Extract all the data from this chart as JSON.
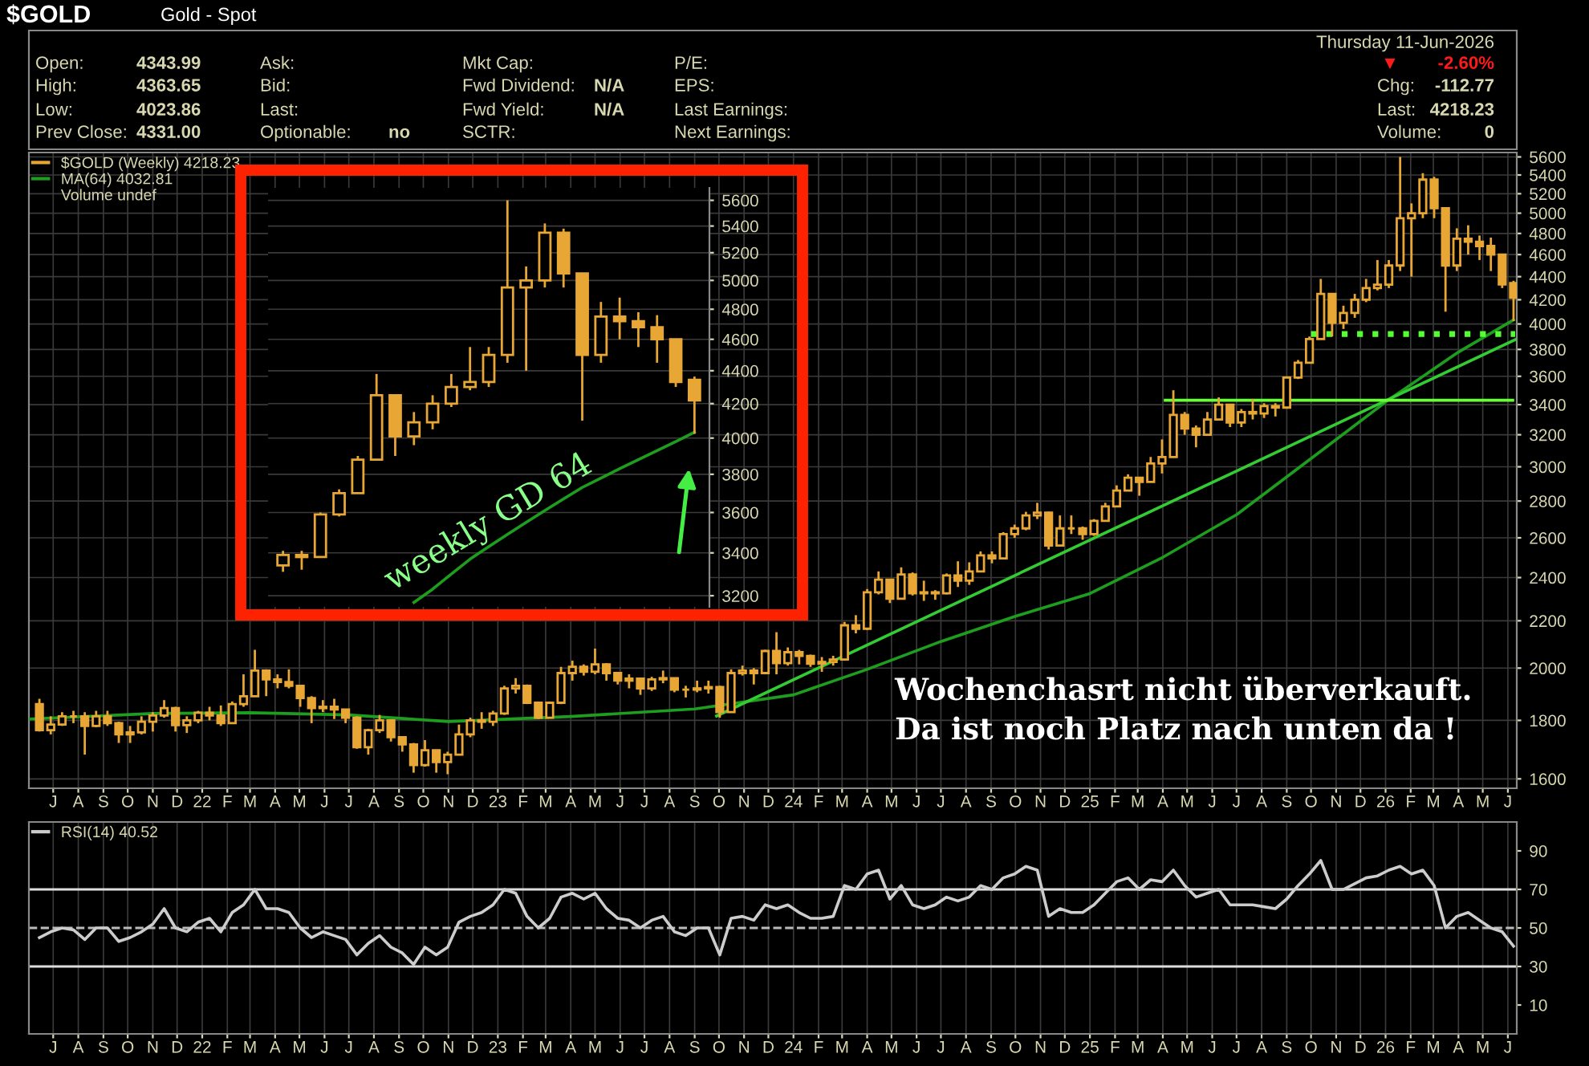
{
  "chart_data": [
    {
      "type": "candlestick",
      "title": "$GOLD",
      "subtitle": "Gold - Spot",
      "x": [
        "2021-06-14",
        "2021-06-28",
        "2021-07-12",
        "2021-07-26",
        "2021-08-09",
        "2021-08-23",
        "2021-09-06",
        "2021-09-20",
        "2021-10-04",
        "2021-10-18",
        "2021-11-01",
        "2021-11-15",
        "2021-11-29",
        "2021-12-13",
        "2021-12-27",
        "2022-01-10",
        "2022-01-24",
        "2022-02-07",
        "2022-02-21",
        "2022-03-07",
        "2022-03-21",
        "2022-04-04",
        "2022-04-18",
        "2022-05-02",
        "2022-05-16",
        "2022-05-30",
        "2022-06-13",
        "2022-06-27",
        "2022-07-11",
        "2022-07-25",
        "2022-08-08",
        "2022-08-22",
        "2022-09-05",
        "2022-09-19",
        "2022-10-03",
        "2022-10-17",
        "2022-10-31",
        "2022-11-14",
        "2022-11-28",
        "2022-12-12",
        "2022-12-26",
        "2023-01-09",
        "2023-01-23",
        "2023-02-06",
        "2023-02-20",
        "2023-03-06",
        "2023-03-20",
        "2023-04-03",
        "2023-04-17",
        "2023-05-01",
        "2023-05-15",
        "2023-05-29",
        "2023-06-12",
        "2023-06-26",
        "2023-07-10",
        "2023-07-24",
        "2023-08-07",
        "2023-08-21",
        "2023-09-04",
        "2023-09-18",
        "2023-10-02",
        "2023-10-16",
        "2023-10-30",
        "2023-11-13",
        "2023-11-27",
        "2023-12-11",
        "2023-12-25",
        "2024-01-08",
        "2024-01-22",
        "2024-02-05",
        "2024-02-19",
        "2024-03-04",
        "2024-03-18",
        "2024-04-01",
        "2024-04-15",
        "2024-04-29",
        "2024-05-13",
        "2024-05-27",
        "2024-06-10",
        "2024-06-24",
        "2024-07-08",
        "2024-07-22",
        "2024-08-05",
        "2024-08-19",
        "2024-09-02",
        "2024-09-16",
        "2024-09-30",
        "2024-10-14",
        "2024-10-28",
        "2024-11-11",
        "2024-11-25",
        "2024-12-09",
        "2024-12-23",
        "2025-01-06",
        "2025-01-20",
        "2025-02-03",
        "2025-02-17",
        "2025-03-03",
        "2025-03-17",
        "2025-03-31",
        "2025-04-14",
        "2025-04-28",
        "2025-05-12",
        "2025-05-26",
        "2025-06-09",
        "2025-06-23",
        "2025-07-07",
        "2025-07-21",
        "2025-08-04",
        "2025-08-18",
        "2025-09-01",
        "2025-09-15",
        "2025-09-29",
        "2025-10-13",
        "2025-10-27",
        "2025-11-10",
        "2025-11-24",
        "2025-12-08",
        "2025-12-22",
        "2026-01-05",
        "2026-01-19",
        "2026-02-02",
        "2026-02-16",
        "2026-03-02",
        "2026-03-16",
        "2026-03-30",
        "2026-04-13",
        "2026-04-27",
        "2026-05-11",
        "2026-05-25",
        "2026-06-08"
      ],
      "series": [
        {
          "type": "candlestick",
          "name": "$GOLD (Weekly) 4218.23",
          "color": "#e8a735",
          "ohlc": [
            [
              1860,
              1880,
              1760,
              1765
            ],
            [
              1765,
              1815,
              1750,
              1785
            ],
            [
              1785,
              1830,
              1780,
              1815
            ],
            [
              1815,
              1835,
              1790,
              1815
            ],
            [
              1815,
              1830,
              1680,
              1780
            ],
            [
              1780,
              1835,
              1775,
              1815
            ],
            [
              1815,
              1835,
              1780,
              1790
            ],
            [
              1790,
              1795,
              1720,
              1750
            ],
            [
              1750,
              1780,
              1720,
              1757
            ],
            [
              1757,
              1815,
              1750,
              1795
            ],
            [
              1795,
              1830,
              1760,
              1818
            ],
            [
              1818,
              1875,
              1810,
              1845
            ],
            [
              1845,
              1850,
              1760,
              1783
            ],
            [
              1783,
              1815,
              1755,
              1800
            ],
            [
              1800,
              1835,
              1790,
              1828
            ],
            [
              1828,
              1850,
              1800,
              1818
            ],
            [
              1818,
              1855,
              1780,
              1790
            ],
            [
              1790,
              1870,
              1790,
              1860
            ],
            [
              1860,
              1975,
              1850,
              1890
            ],
            [
              1890,
              2075,
              1890,
              1990
            ],
            [
              1990,
              1995,
              1890,
              1955
            ],
            [
              1955,
              1975,
              1920,
              1945
            ],
            [
              1945,
              1995,
              1920,
              1930
            ],
            [
              1930,
              1930,
              1850,
              1883
            ],
            [
              1883,
              1890,
              1790,
              1845
            ],
            [
              1845,
              1875,
              1830,
              1850
            ],
            [
              1850,
              1880,
              1805,
              1840
            ],
            [
              1840,
              1840,
              1790,
              1810
            ],
            [
              1810,
              1815,
              1700,
              1705
            ],
            [
              1705,
              1770,
              1680,
              1765
            ],
            [
              1765,
              1820,
              1755,
              1800
            ],
            [
              1800,
              1800,
              1725,
              1740
            ],
            [
              1740,
              1740,
              1690,
              1715
            ],
            [
              1715,
              1720,
              1620,
              1645
            ],
            [
              1645,
              1730,
              1640,
              1695
            ],
            [
              1695,
              1695,
              1620,
              1655
            ],
            [
              1655,
              1690,
              1615,
              1680
            ],
            [
              1680,
              1785,
              1680,
              1750
            ],
            [
              1750,
              1810,
              1740,
              1800
            ],
            [
              1800,
              1830,
              1770,
              1795
            ],
            [
              1795,
              1835,
              1780,
              1825
            ],
            [
              1825,
              1930,
              1820,
              1920
            ],
            [
              1920,
              1960,
              1900,
              1930
            ],
            [
              1930,
              1935,
              1860,
              1865
            ],
            [
              1865,
              1870,
              1805,
              1810
            ],
            [
              1810,
              1870,
              1810,
              1865
            ],
            [
              1865,
              2005,
              1860,
              1980
            ],
            [
              1980,
              2030,
              1950,
              2005
            ],
            [
              2005,
              2015,
              1970,
              1985
            ],
            [
              1985,
              2080,
              1975,
              2015
            ],
            [
              2015,
              2020,
              1950,
              1980
            ],
            [
              1980,
              1985,
              1935,
              1950
            ],
            [
              1950,
              1975,
              1920,
              1958
            ],
            [
              1958,
              1960,
              1895,
              1920
            ],
            [
              1920,
              1965,
              1910,
              1955
            ],
            [
              1955,
              1990,
              1940,
              1960
            ],
            [
              1960,
              1960,
              1905,
              1915
            ],
            [
              1915,
              1930,
              1885,
              1915
            ],
            [
              1915,
              1950,
              1905,
              1920
            ],
            [
              1920,
              1950,
              1900,
              1925
            ],
            [
              1925,
              1930,
              1810,
              1830
            ],
            [
              1830,
              1995,
              1830,
              1980
            ],
            [
              1980,
              2010,
              1970,
              1990
            ],
            [
              1990,
              2000,
              1935,
              1980
            ],
            [
              1980,
              2075,
              1975,
              2070
            ],
            [
              2070,
              2150,
              1975,
              2020
            ],
            [
              2020,
              2085,
              2010,
              2065
            ],
            [
              2065,
              2075,
              2015,
              2050
            ],
            [
              2050,
              2055,
              2005,
              2018
            ],
            [
              2018,
              2045,
              1985,
              2025
            ],
            [
              2025,
              2050,
              2010,
              2035
            ],
            [
              2035,
              2195,
              2035,
              2180
            ],
            [
              2180,
              2225,
              2145,
              2165
            ],
            [
              2165,
              2345,
              2160,
              2330
            ],
            [
              2330,
              2430,
              2320,
              2390
            ],
            [
              2390,
              2390,
              2280,
              2300
            ],
            [
              2300,
              2450,
              2300,
              2415
            ],
            [
              2415,
              2425,
              2315,
              2325
            ],
            [
              2325,
              2385,
              2290,
              2330
            ],
            [
              2330,
              2340,
              2295,
              2325
            ],
            [
              2325,
              2420,
              2320,
              2410
            ],
            [
              2410,
              2480,
              2355,
              2385
            ],
            [
              2385,
              2475,
              2365,
              2430
            ],
            [
              2430,
              2530,
              2430,
              2510
            ],
            [
              2510,
              2530,
              2470,
              2495
            ],
            [
              2495,
              2630,
              2495,
              2620
            ],
            [
              2620,
              2670,
              2600,
              2650
            ],
            [
              2650,
              2740,
              2640,
              2720
            ],
            [
              2720,
              2790,
              2700,
              2735
            ],
            [
              2735,
              2740,
              2540,
              2560
            ],
            [
              2560,
              2720,
              2560,
              2650
            ],
            [
              2650,
              2720,
              2620,
              2650
            ],
            [
              2650,
              2660,
              2590,
              2620
            ],
            [
              2620,
              2700,
              2610,
              2690
            ],
            [
              2690,
              2790,
              2690,
              2770
            ],
            [
              2770,
              2890,
              2770,
              2860
            ],
            [
              2860,
              2955,
              2860,
              2935
            ],
            [
              2935,
              2940,
              2830,
              2910
            ],
            [
              2910,
              3060,
              2910,
              3020
            ],
            [
              3020,
              3170,
              2960,
              3060
            ],
            [
              3060,
              3500,
              3060,
              3330
            ],
            [
              3330,
              3350,
              3200,
              3240
            ],
            [
              3240,
              3260,
              3120,
              3200
            ],
            [
              3200,
              3350,
              3200,
              3300
            ],
            [
              3300,
              3450,
              3300,
              3400
            ],
            [
              3400,
              3400,
              3250,
              3280
            ],
            [
              3280,
              3370,
              3250,
              3350
            ],
            [
              3350,
              3440,
              3300,
              3340
            ],
            [
              3340,
              3410,
              3310,
              3390
            ],
            [
              3390,
              3410,
              3320,
              3380
            ],
            [
              3380,
              3600,
              3380,
              3590
            ],
            [
              3590,
              3720,
              3580,
              3700
            ],
            [
              3700,
              3900,
              3700,
              3880
            ],
            [
              3880,
              4380,
              3880,
              4250
            ],
            [
              4250,
              4250,
              3900,
              4010
            ],
            [
              4010,
              4150,
              3960,
              4090
            ],
            [
              4090,
              4250,
              4050,
              4200
            ],
            [
              4200,
              4380,
              4180,
              4300
            ],
            [
              4300,
              4550,
              4280,
              4330
            ],
            [
              4330,
              4550,
              4300,
              4500
            ],
            [
              4500,
              5600,
              4450,
              4950
            ],
            [
              4950,
              5100,
              4400,
              5000
            ],
            [
              5000,
              5420,
              4950,
              5350
            ],
            [
              5350,
              5380,
              4950,
              5050
            ],
            [
              5050,
              5050,
              4100,
              4500
            ],
            [
              4500,
              4850,
              4450,
              4750
            ],
            [
              4750,
              4880,
              4600,
              4720
            ],
            [
              4720,
              4780,
              4550,
              4680
            ],
            [
              4680,
              4760,
              4450,
              4600
            ],
            [
              4600,
              4600,
              4300,
              4331
            ],
            [
              4343.99,
              4363.65,
              4023.86,
              4218.23
            ]
          ]
        },
        {
          "type": "line",
          "name": "MA(64) 4032.81",
          "color": "#1e9e1e",
          "x": [
            "2021-06-01",
            "2021-11-01",
            "2022-03-01",
            "2022-07-01",
            "2022-11-01",
            "2023-04-01",
            "2023-09-01",
            "2024-01-01",
            "2024-04-01",
            "2024-07-01",
            "2024-10-01",
            "2025-01-01",
            "2025-04-01",
            "2025-07-01",
            "2025-10-01",
            "2026-01-01",
            "2026-04-01",
            "2026-06-08"
          ],
          "values": [
            1805,
            1825,
            1828,
            1820,
            1796,
            1814,
            1842,
            1895,
            1995,
            2110,
            2220,
            2324,
            2500,
            2724,
            3050,
            3418,
            3780,
            4032.81
          ]
        },
        {
          "type": "line",
          "color": "#33cc33",
          "x": [
            "2023-09-28",
            "2026-06-10"
          ],
          "values": [
            1816,
            3875
          ]
        },
        {
          "type": "line",
          "color": "#66ff33",
          "x": [
            "2025-04-04",
            "2026-06-07"
          ],
          "values": [
            3430,
            3430
          ]
        },
        {
          "type": "line",
          "color": "#55ff33",
          "line_style": "dotted",
          "x": [
            "2025-10-01",
            "2026-06-10"
          ],
          "values": [
            3920,
            3920
          ]
        }
      ],
      "xlim": [
        "2021-06-01",
        "2026-06-12"
      ],
      "xticks": [
        {
          "value": "2021-07",
          "label": "J"
        },
        {
          "value": "2021-08",
          "label": "A"
        },
        {
          "value": "2021-09",
          "label": "S"
        },
        {
          "value": "2021-10",
          "label": "O"
        },
        {
          "value": "2021-11",
          "label": "N"
        },
        {
          "value": "2021-12",
          "label": "D"
        },
        {
          "value": "2022-01",
          "label": "22"
        },
        {
          "value": "2022-02",
          "label": "F"
        },
        {
          "value": "2022-03",
          "label": "M"
        },
        {
          "value": "2022-04",
          "label": "A"
        },
        {
          "value": "2022-05",
          "label": "M"
        },
        {
          "value": "2022-06",
          "label": "J"
        },
        {
          "value": "2022-07",
          "label": "J"
        },
        {
          "value": "2022-08",
          "label": "A"
        },
        {
          "value": "2022-09",
          "label": "S"
        },
        {
          "value": "2022-10",
          "label": "O"
        },
        {
          "value": "2022-11",
          "label": "N"
        },
        {
          "value": "2022-12",
          "label": "D"
        },
        {
          "value": "2023-01",
          "label": "23"
        },
        {
          "value": "2023-02",
          "label": "F"
        },
        {
          "value": "2023-03",
          "label": "M"
        },
        {
          "value": "2023-04",
          "label": "A"
        },
        {
          "value": "2023-05",
          "label": "M"
        },
        {
          "value": "2023-06",
          "label": "J"
        },
        {
          "value": "2023-07",
          "label": "J"
        },
        {
          "value": "2023-08",
          "label": "A"
        },
        {
          "value": "2023-09",
          "label": "S"
        },
        {
          "value": "2023-10",
          "label": "O"
        },
        {
          "value": "2023-11",
          "label": "N"
        },
        {
          "value": "2023-12",
          "label": "D"
        },
        {
          "value": "2024-01",
          "label": "24"
        },
        {
          "value": "2024-02",
          "label": "F"
        },
        {
          "value": "2024-03",
          "label": "M"
        },
        {
          "value": "2024-04",
          "label": "A"
        },
        {
          "value": "2024-05",
          "label": "M"
        },
        {
          "value": "2024-06",
          "label": "J"
        },
        {
          "value": "2024-07",
          "label": "J"
        },
        {
          "value": "2024-08",
          "label": "A"
        },
        {
          "value": "2024-09",
          "label": "S"
        },
        {
          "value": "2024-10",
          "label": "O"
        },
        {
          "value": "2024-11",
          "label": "N"
        },
        {
          "value": "2024-12",
          "label": "D"
        },
        {
          "value": "2025-01",
          "label": "25"
        },
        {
          "value": "2025-02",
          "label": "F"
        },
        {
          "value": "2025-03",
          "label": "M"
        },
        {
          "value": "2025-04",
          "label": "A"
        },
        {
          "value": "2025-05",
          "label": "M"
        },
        {
          "value": "2025-06",
          "label": "J"
        },
        {
          "value": "2025-07",
          "label": "J"
        },
        {
          "value": "2025-08",
          "label": "A"
        },
        {
          "value": "2025-09",
          "label": "S"
        },
        {
          "value": "2025-10",
          "label": "O"
        },
        {
          "value": "2025-11",
          "label": "N"
        },
        {
          "value": "2025-12",
          "label": "D"
        },
        {
          "value": "2026-01",
          "label": "26"
        },
        {
          "value": "2026-02",
          "label": "F"
        },
        {
          "value": "2026-03",
          "label": "M"
        },
        {
          "value": "2026-04",
          "label": "A"
        },
        {
          "value": "2026-05",
          "label": "M"
        },
        {
          "value": "2026-06",
          "label": "J"
        }
      ],
      "log": "y",
      "ylim": [
        1570,
        5650
      ],
      "yticks": [
        1600,
        1800,
        2000,
        2200,
        2400,
        2600,
        2800,
        3000,
        3200,
        3400,
        3600,
        3800,
        4000,
        4200,
        4400,
        4600,
        4800,
        5000,
        5200,
        5400,
        5600
      ],
      "grid": true,
      "legend": "top left",
      "annotations": [
        "Thursday 11-Jun-2026",
        "Open:",
        "4343.99",
        "High:",
        "4363.65",
        "Low:",
        "4023.86",
        "Prev Close:",
        "4331.00",
        "Ask:",
        "Bid:",
        "Last:",
        "Optionable:",
        "no",
        "Mkt Cap:",
        "Fwd Dividend:",
        "N/A",
        "Fwd Yield:",
        "N/A",
        "SCTR:",
        "P/E:",
        "EPS:",
        "Last Earnings:",
        "Next Earnings:",
        "▼",
        "-2.60%",
        "Chg:",
        "-112.77",
        "Last:",
        "4218.23",
        "Volume:",
        "0",
        "Volume undef",
        "Wochenchasrt nicht überverkauft.\nDa ist noch Platz nach unten da !"
      ]
    },
    {
      "type": "candlestick",
      "categories": [
        null,
        null,
        null,
        null,
        null,
        null,
        null,
        null,
        null,
        null,
        null,
        null,
        null,
        null,
        null,
        null,
        null,
        null,
        null,
        null,
        null,
        null,
        null
      ],
      "series": [
        {
          "type": "candlestick",
          "color": "#e8a735",
          "ohlc": [
            [
              3340,
              3410,
              3310,
              3390
            ],
            [
              3390,
              3410,
              3320,
              3380
            ],
            [
              3380,
              3600,
              3380,
              3590
            ],
            [
              3590,
              3720,
              3580,
              3700
            ],
            [
              3700,
              3900,
              3700,
              3880
            ],
            [
              3880,
              4380,
              3880,
              4250
            ],
            [
              4250,
              4250,
              3900,
              4010
            ],
            [
              4010,
              4150,
              3960,
              4090
            ],
            [
              4090,
              4250,
              4050,
              4200
            ],
            [
              4200,
              4380,
              4180,
              4300
            ],
            [
              4300,
              4550,
              4280,
              4330
            ],
            [
              4330,
              4550,
              4300,
              4500
            ],
            [
              4500,
              5600,
              4450,
              4950
            ],
            [
              4950,
              5100,
              4400,
              5000
            ],
            [
              5000,
              5420,
              4950,
              5350
            ],
            [
              5350,
              5380,
              4950,
              5050
            ],
            [
              5050,
              5050,
              4100,
              4500
            ],
            [
              4500,
              4850,
              4450,
              4750
            ],
            [
              4750,
              4880,
              4600,
              4720
            ],
            [
              4720,
              4780,
              4550,
              4680
            ],
            [
              4680,
              4760,
              4450,
              4600
            ],
            [
              4600,
              4600,
              4300,
              4331
            ],
            [
              4343.99,
              4363.65,
              4023.86,
              4218.23
            ]
          ]
        },
        {
          "type": "line",
          "color": "#1e9e1e",
          "values": [
            null,
            null,
            null,
            null,
            null,
            null,
            null,
            3170,
            3230,
            3300,
            3370,
            3430,
            3490,
            3550,
            3610,
            3670,
            3730,
            3780,
            3830,
            3880,
            3930,
            3980,
            4032.81
          ]
        }
      ],
      "log": "y",
      "ylim": [
        3150,
        5700
      ],
      "yticks": [
        3200,
        3400,
        3600,
        3800,
        4000,
        4200,
        4400,
        4600,
        4800,
        5000,
        5200,
        5400,
        5600
      ],
      "grid": "y",
      "tick_labels": "y",
      "annotations": [
        "weekly GD 64"
      ]
    },
    {
      "type": "line",
      "x": [
        "2021-06-14",
        "2021-06-28",
        "2021-07-12",
        "2021-07-26",
        "2021-08-09",
        "2021-08-23",
        "2021-09-06",
        "2021-09-20",
        "2021-10-04",
        "2021-10-18",
        "2021-11-01",
        "2021-11-15",
        "2021-11-29",
        "2021-12-13",
        "2021-12-27",
        "2022-01-10",
        "2022-01-24",
        "2022-02-07",
        "2022-02-21",
        "2022-03-07",
        "2022-03-21",
        "2022-04-04",
        "2022-04-18",
        "2022-05-02",
        "2022-05-16",
        "2022-05-30",
        "2022-06-13",
        "2022-06-27",
        "2022-07-11",
        "2022-07-25",
        "2022-08-08",
        "2022-08-22",
        "2022-09-05",
        "2022-09-19",
        "2022-10-03",
        "2022-10-17",
        "2022-10-31",
        "2022-11-14",
        "2022-11-28",
        "2022-12-12",
        "2022-12-26",
        "2023-01-09",
        "2023-01-23",
        "2023-02-06",
        "2023-02-20",
        "2023-03-06",
        "2023-03-20",
        "2023-04-03",
        "2023-04-17",
        "2023-05-01",
        "2023-05-15",
        "2023-05-29",
        "2023-06-12",
        "2023-06-26",
        "2023-07-10",
        "2023-07-24",
        "2023-08-07",
        "2023-08-21",
        "2023-09-04",
        "2023-09-18",
        "2023-10-02",
        "2023-10-16",
        "2023-10-30",
        "2023-11-13",
        "2023-11-27",
        "2023-12-11",
        "2023-12-25",
        "2024-01-08",
        "2024-01-22",
        "2024-02-05",
        "2024-02-19",
        "2024-03-04",
        "2024-03-18",
        "2024-04-01",
        "2024-04-15",
        "2024-04-29",
        "2024-05-13",
        "2024-05-27",
        "2024-06-10",
        "2024-06-24",
        "2024-07-08",
        "2024-07-22",
        "2024-08-05",
        "2024-08-19",
        "2024-09-02",
        "2024-09-16",
        "2024-09-30",
        "2024-10-14",
        "2024-10-28",
        "2024-11-11",
        "2024-11-25",
        "2024-12-09",
        "2024-12-23",
        "2025-01-06",
        "2025-01-20",
        "2025-02-03",
        "2025-02-17",
        "2025-03-03",
        "2025-03-17",
        "2025-03-31",
        "2025-04-14",
        "2025-04-28",
        "2025-05-12",
        "2025-05-26",
        "2025-06-09",
        "2025-06-23",
        "2025-07-07",
        "2025-07-21",
        "2025-08-04",
        "2025-08-18",
        "2025-09-01",
        "2025-09-15",
        "2025-09-29",
        "2025-10-13",
        "2025-10-27",
        "2025-11-10",
        "2025-11-24",
        "2025-12-08",
        "2025-12-22",
        "2026-01-05",
        "2026-01-19",
        "2026-02-02",
        "2026-02-16",
        "2026-03-02",
        "2026-03-16",
        "2026-03-30",
        "2026-04-13",
        "2026-04-27",
        "2026-05-11",
        "2026-05-25",
        "2026-06-08"
      ],
      "series": [
        {
          "name": "RSI(14) 40.52",
          "color": "#cccccc",
          "values": [
            45,
            48,
            50,
            49,
            44,
            50,
            50,
            43,
            45,
            48,
            52,
            60,
            50,
            48,
            53,
            55,
            48,
            58,
            62,
            70,
            60,
            60,
            58,
            50,
            45,
            48,
            46,
            44,
            36,
            42,
            46,
            40,
            37,
            31,
            40,
            36,
            40,
            53,
            56,
            58,
            62,
            70,
            68,
            56,
            50,
            55,
            66,
            68,
            65,
            68,
            60,
            55,
            54,
            50,
            54,
            56,
            48,
            46,
            50,
            50,
            36,
            55,
            56,
            54,
            62,
            60,
            62,
            58,
            55,
            55,
            56,
            72,
            70,
            78,
            80,
            65,
            72,
            62,
            60,
            62,
            66,
            64,
            66,
            72,
            70,
            76,
            78,
            82,
            80,
            56,
            60,
            58,
            58,
            62,
            68,
            74,
            76,
            70,
            75,
            74,
            80,
            72,
            66,
            68,
            70,
            62,
            62,
            62,
            61,
            60,
            65,
            72,
            78,
            85,
            70,
            70,
            73,
            76,
            77,
            80,
            82,
            78,
            80,
            72,
            50,
            56,
            58,
            54,
            50,
            48,
            40.52
          ]
        }
      ],
      "ref_lines": [
        {
          "axis": "y",
          "value": 70,
          "color": "#dddddd",
          "line_style": "solid"
        },
        {
          "axis": "y",
          "value": 50,
          "color": "#bbbbbb",
          "line_style": "dashed"
        },
        {
          "axis": "y",
          "value": 30,
          "color": "#dddddd",
          "line_style": "solid"
        }
      ],
      "xlim": [
        "2021-06-01",
        "2026-06-12"
      ],
      "xticks": [
        {
          "value": "2021-07",
          "label": "J"
        },
        {
          "value": "2021-08",
          "label": "A"
        },
        {
          "value": "2021-09",
          "label": "S"
        },
        {
          "value": "2021-10",
          "label": "O"
        },
        {
          "value": "2021-11",
          "label": "N"
        },
        {
          "value": "2021-12",
          "label": "D"
        },
        {
          "value": "2022-01",
          "label": "22"
        },
        {
          "value": "2022-02",
          "label": "F"
        },
        {
          "value": "2022-03",
          "label": "M"
        },
        {
          "value": "2022-04",
          "label": "A"
        },
        {
          "value": "2022-05",
          "label": "M"
        },
        {
          "value": "2022-06",
          "label": "J"
        },
        {
          "value": "2022-07",
          "label": "J"
        },
        {
          "value": "2022-08",
          "label": "A"
        },
        {
          "value": "2022-09",
          "label": "S"
        },
        {
          "value": "2022-10",
          "label": "O"
        },
        {
          "value": "2022-11",
          "label": "N"
        },
        {
          "value": "2022-12",
          "label": "D"
        },
        {
          "value": "2023-01",
          "label": "23"
        },
        {
          "value": "2023-02",
          "label": "F"
        },
        {
          "value": "2023-03",
          "label": "M"
        },
        {
          "value": "2023-04",
          "label": "A"
        },
        {
          "value": "2023-05",
          "label": "M"
        },
        {
          "value": "2023-06",
          "label": "J"
        },
        {
          "value": "2023-07",
          "label": "J"
        },
        {
          "value": "2023-08",
          "label": "A"
        },
        {
          "value": "2023-09",
          "label": "S"
        },
        {
          "value": "2023-10",
          "label": "O"
        },
        {
          "value": "2023-11",
          "label": "N"
        },
        {
          "value": "2023-12",
          "label": "D"
        },
        {
          "value": "2024-01",
          "label": "24"
        },
        {
          "value": "2024-02",
          "label": "F"
        },
        {
          "value": "2024-03",
          "label": "M"
        },
        {
          "value": "2024-04",
          "label": "A"
        },
        {
          "value": "2024-05",
          "label": "M"
        },
        {
          "value": "2024-06",
          "label": "J"
        },
        {
          "value": "2024-07",
          "label": "J"
        },
        {
          "value": "2024-08",
          "label": "A"
        },
        {
          "value": "2024-09",
          "label": "S"
        },
        {
          "value": "2024-10",
          "label": "O"
        },
        {
          "value": "2024-11",
          "label": "N"
        },
        {
          "value": "2024-12",
          "label": "D"
        },
        {
          "value": "2025-01",
          "label": "25"
        },
        {
          "value": "2025-02",
          "label": "F"
        },
        {
          "value": "2025-03",
          "label": "M"
        },
        {
          "value": "2025-04",
          "label": "A"
        },
        {
          "value": "2025-05",
          "label": "M"
        },
        {
          "value": "2025-06",
          "label": "J"
        },
        {
          "value": "2025-07",
          "label": "J"
        },
        {
          "value": "2025-08",
          "label": "A"
        },
        {
          "value": "2025-09",
          "label": "S"
        },
        {
          "value": "2025-10",
          "label": "O"
        },
        {
          "value": "2025-11",
          "label": "N"
        },
        {
          "value": "2025-12",
          "label": "D"
        },
        {
          "value": "2026-01",
          "label": "26"
        },
        {
          "value": "2026-02",
          "label": "F"
        },
        {
          "value": "2026-03",
          "label": "M"
        },
        {
          "value": "2026-04",
          "label": "A"
        },
        {
          "value": "2026-05",
          "label": "M"
        },
        {
          "value": "2026-06",
          "label": "J"
        }
      ],
      "ylim": [
        -5,
        105
      ],
      "yticks": [
        10,
        30,
        50,
        70,
        90
      ],
      "grid": "x",
      "legend": "top left"
    }
  ]
}
